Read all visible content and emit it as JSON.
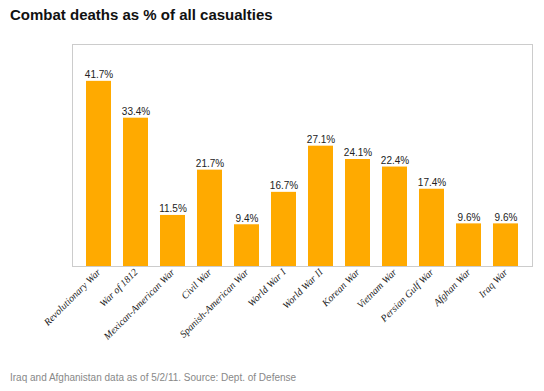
{
  "chart_data": {
    "type": "bar",
    "title": "Combat deaths as % of all casualties",
    "caption": "Iraq and Afghanistan data as of 5/2/11. Source: Dept. of Defense",
    "categories": [
      "Revolutionary War",
      "War of 1812",
      "Mexican-American War",
      "Civil War",
      "Spanish-American War",
      "World War I",
      "World War II",
      "Korean War",
      "Vietnam War",
      "Persian Gulf War",
      "Afghan War",
      "Iraq War"
    ],
    "values": [
      41.7,
      33.4,
      11.5,
      21.7,
      9.4,
      16.7,
      27.1,
      24.1,
      22.4,
      17.4,
      9.6,
      9.6
    ],
    "value_labels": [
      "41.7%",
      "33.4%",
      "11.5%",
      "21.7%",
      "9.4%",
      "16.7%",
      "27.1%",
      "24.1%",
      "22.4%",
      "17.4%",
      "9.6%",
      "9.6%"
    ],
    "color": "#FFAA00",
    "ylim": [
      0,
      50
    ],
    "data_labels": true,
    "tick_labels": "x",
    "grid": false
  }
}
